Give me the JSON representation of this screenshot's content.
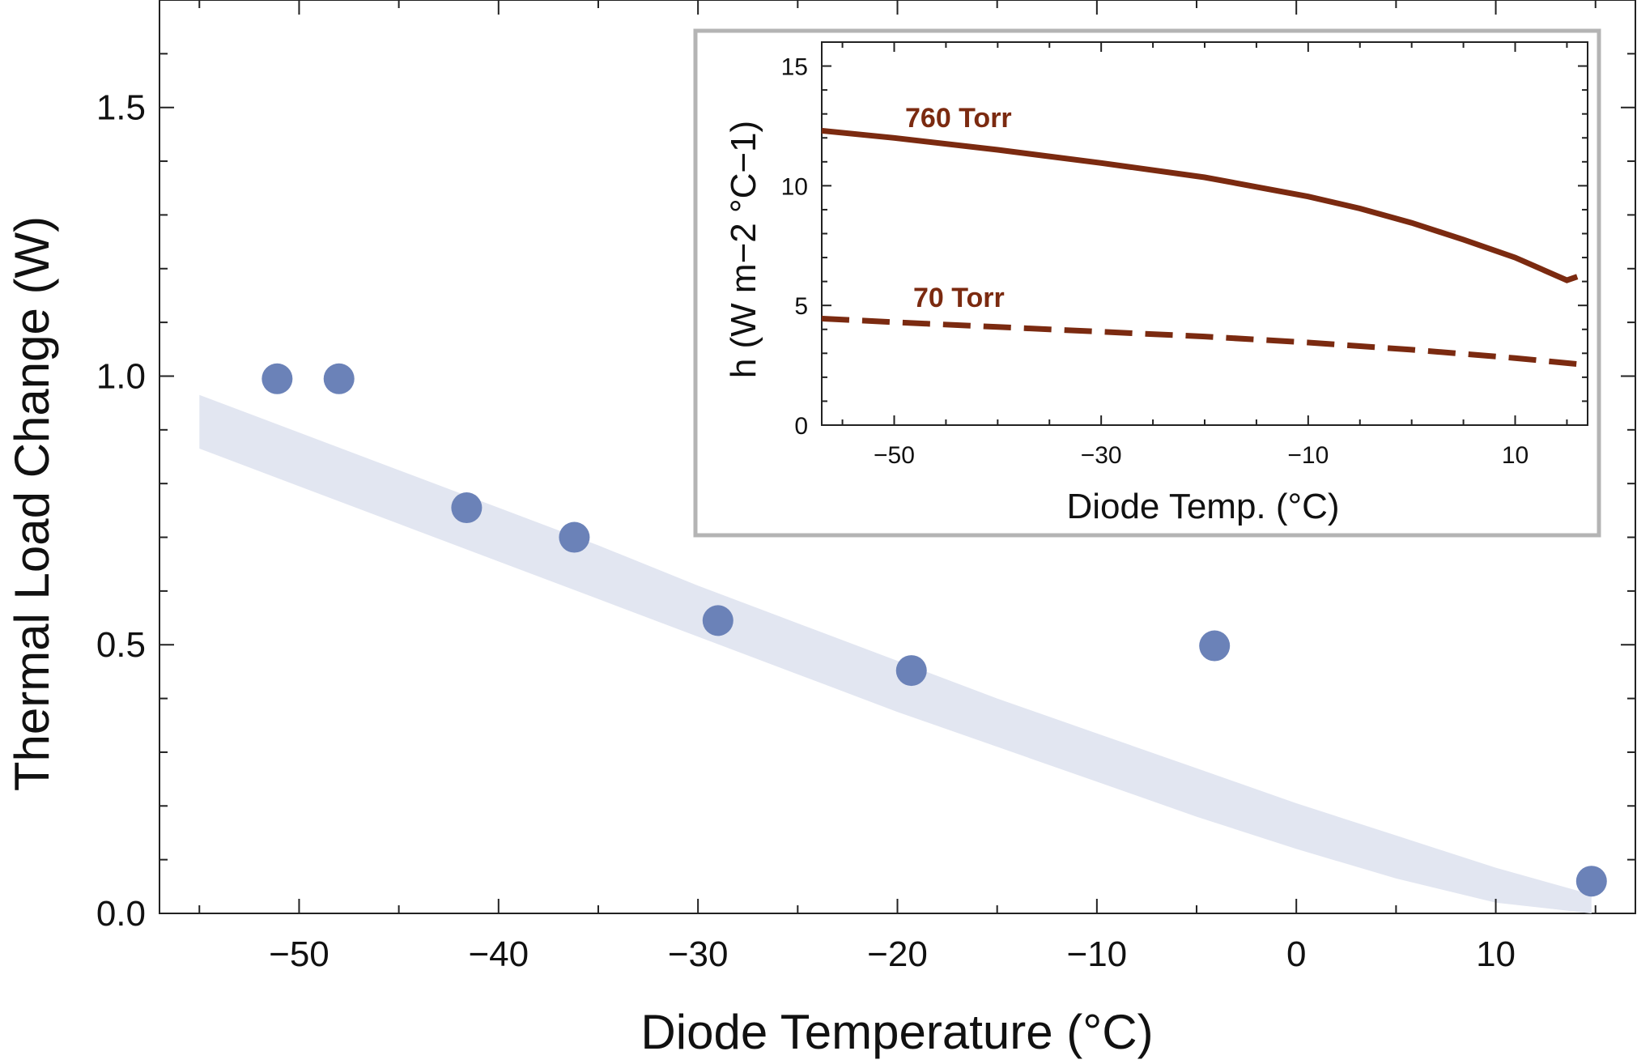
{
  "chart_data": [
    {
      "type": "scatter",
      "xlabel": "Diode Temperature (°C)",
      "ylabel": "Thermal Load Change (W)",
      "xlim": [
        -57,
        17
      ],
      "ylim": [
        0,
        1.7
      ],
      "x_ticks": [
        -50,
        -40,
        -30,
        -20,
        -10,
        0,
        10
      ],
      "y_ticks": [
        0.0,
        0.5,
        1.0,
        1.5
      ],
      "x_tick_labels": [
        "−50",
        "−40",
        "−30",
        "−20",
        "−10",
        "0",
        "10"
      ],
      "y_tick_labels": [
        "0.0",
        "0.5",
        "1.0",
        "1.5"
      ],
      "points_color": "#6b82b8",
      "band_color": "#e2e6f1",
      "points": [
        {
          "x": -51.1,
          "y": 0.995
        },
        {
          "x": -48.0,
          "y": 0.995
        },
        {
          "x": -41.6,
          "y": 0.755
        },
        {
          "x": -36.2,
          "y": 0.7
        },
        {
          "x": -29.0,
          "y": 0.545
        },
        {
          "x": -19.3,
          "y": 0.452
        },
        {
          "x": -4.1,
          "y": 0.498
        },
        {
          "x": 14.8,
          "y": 0.06
        }
      ],
      "band": {
        "x": [
          -55,
          -50,
          -45,
          -40,
          -35,
          -30,
          -25,
          -20,
          -15,
          -10,
          -5,
          0,
          5,
          10,
          14.8
        ],
        "upper": [
          0.965,
          0.895,
          0.825,
          0.755,
          0.685,
          0.61,
          0.54,
          0.47,
          0.4,
          0.335,
          0.27,
          0.205,
          0.145,
          0.085,
          0.035
        ],
        "lower": [
          0.865,
          0.795,
          0.725,
          0.655,
          0.585,
          0.515,
          0.445,
          0.375,
          0.31,
          0.245,
          0.18,
          0.12,
          0.065,
          0.02,
          0.0
        ]
      }
    },
    {
      "type": "line",
      "xlabel": "Diode Temp. (°C)",
      "ylabel": "h (W m−2 °C−1)",
      "xlim": [
        -57,
        17
      ],
      "ylim": [
        0,
        16
      ],
      "x_ticks": [
        -50,
        -30,
        -10,
        10
      ],
      "y_ticks": [
        0,
        5,
        10,
        15
      ],
      "x_tick_labels": [
        "−50",
        "−30",
        "−10",
        "10"
      ],
      "y_tick_labels": [
        "0",
        "5",
        "10",
        "15"
      ],
      "line_color": "#7b2a10",
      "series": [
        {
          "name": "760 Torr",
          "style": "solid",
          "x": [
            -57,
            -50,
            -40,
            -30,
            -20,
            -10,
            -5,
            0,
            5,
            10,
            15,
            16
          ],
          "y": [
            12.3,
            12.0,
            11.5,
            10.95,
            10.35,
            9.55,
            9.05,
            8.45,
            7.75,
            7.0,
            6.05,
            6.2
          ]
        },
        {
          "name": "70 Torr",
          "style": "dashed",
          "x": [
            -57,
            -50,
            -40,
            -30,
            -20,
            -10,
            0,
            10,
            16
          ],
          "y": [
            4.45,
            4.3,
            4.1,
            3.9,
            3.7,
            3.45,
            3.15,
            2.8,
            2.55
          ]
        }
      ]
    }
  ]
}
